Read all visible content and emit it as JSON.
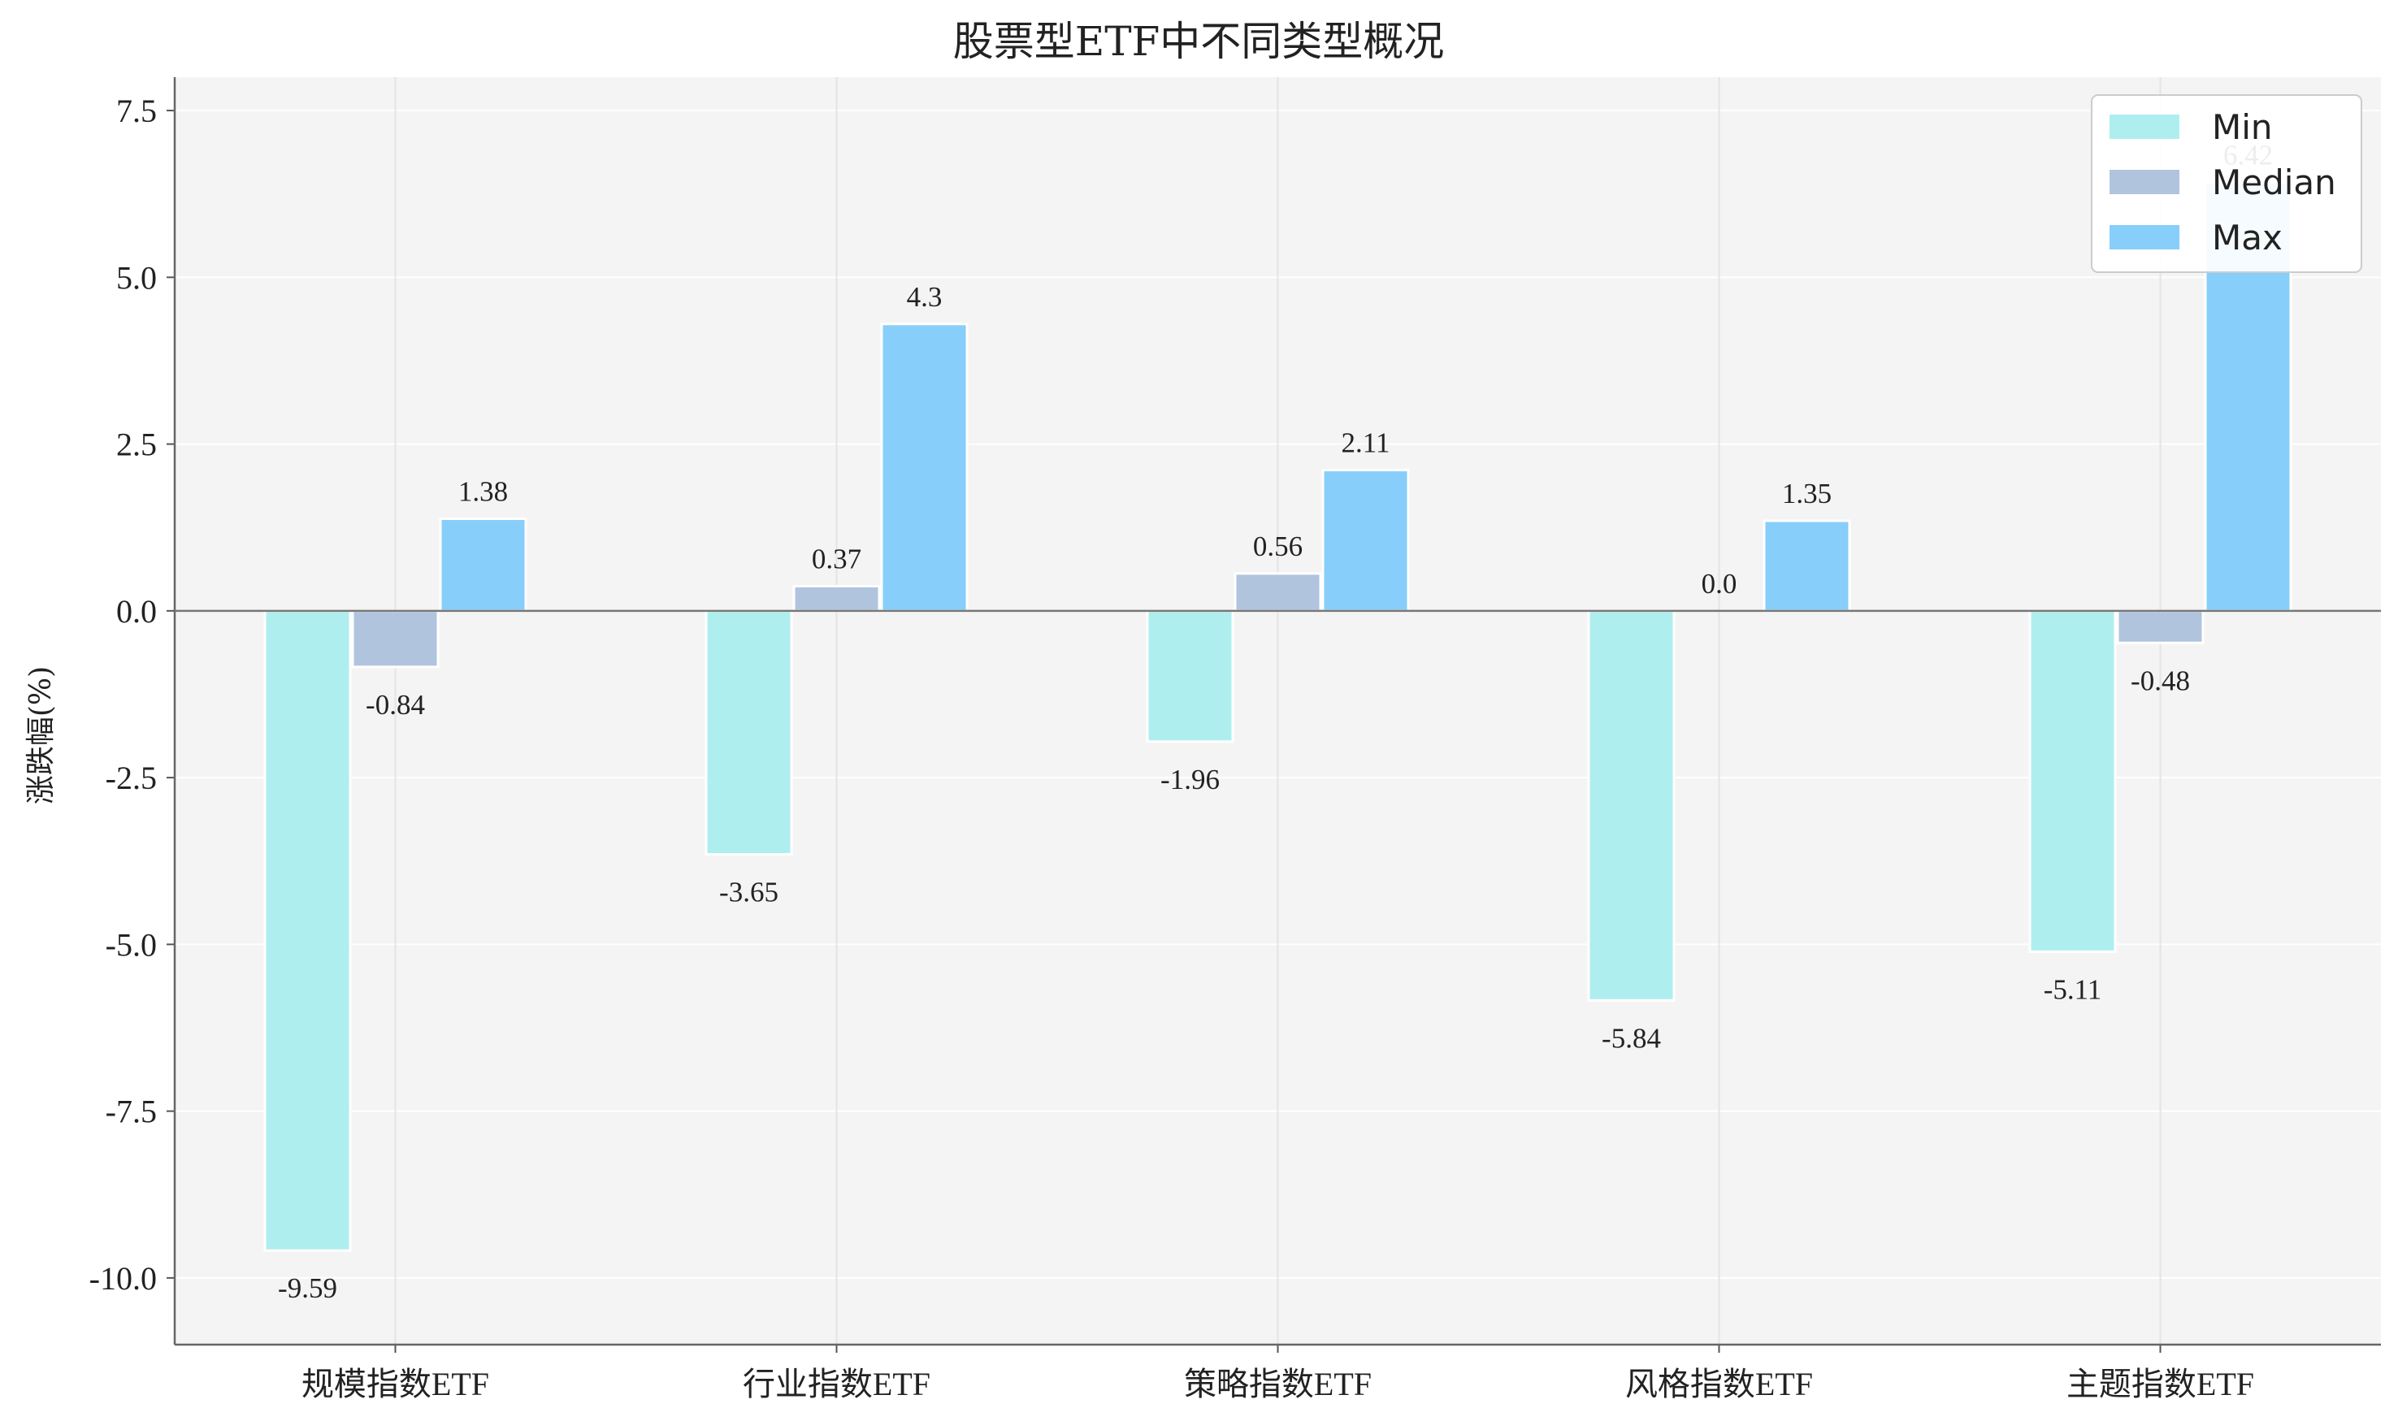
{
  "chart_data": {
    "type": "bar",
    "title": "股票型ETF中不同类型概况",
    "xlabel": "",
    "ylabel": "涨跌幅(%)",
    "categories": [
      "规模指数ETF",
      "行业指数ETF",
      "策略指数ETF",
      "风格指数ETF",
      "主题指数ETF"
    ],
    "series": [
      {
        "name": "Min",
        "color": "#AFEEEE",
        "values": [
          -9.59,
          -3.65,
          -1.96,
          -5.84,
          -5.11
        ]
      },
      {
        "name": "Median",
        "color": "#B0C4DE",
        "values": [
          -0.84,
          0.37,
          0.56,
          0.0,
          -0.48
        ]
      },
      {
        "name": "Max",
        "color": "#87CEFA",
        "values": [
          1.38,
          4.3,
          2.11,
          1.35,
          6.42
        ]
      }
    ],
    "data_labels": [
      [
        "-9.59",
        "-3.65",
        "-1.96",
        "-5.84",
        "-5.11"
      ],
      [
        "-0.84",
        "0.37",
        "0.56",
        "0.0",
        "-0.48"
      ],
      [
        "1.38",
        "4.3",
        "2.11",
        "1.35",
        "6.42"
      ]
    ],
    "ylim": [
      -11,
      8
    ],
    "yticks": [
      -10.0,
      -7.5,
      -5.0,
      -2.5,
      0.0,
      2.5,
      5.0,
      7.5
    ],
    "ytick_labels": [
      "-10.0",
      "-7.5",
      "-5.0",
      "-2.5",
      "0.0",
      "2.5",
      "5.0",
      "7.5"
    ],
    "grid": true,
    "legend": "top-right",
    "plot_background": "#F4F4F4",
    "zero_line": true
  }
}
